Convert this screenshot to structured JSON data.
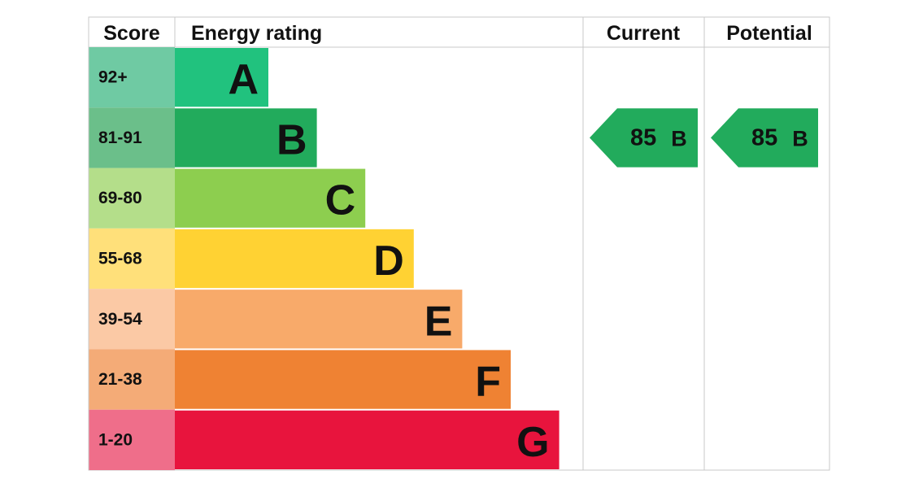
{
  "header": {
    "score": "Score",
    "rating": "Energy rating",
    "current": "Current",
    "potential": "Potential"
  },
  "rows": [
    {
      "score": "92+",
      "band": "A",
      "color": "#21c27e",
      "score_color": "#6fcaa3"
    },
    {
      "score": "81-91",
      "band": "B",
      "color": "#22ab5c",
      "score_color": "#6bbf8a"
    },
    {
      "score": "69-80",
      "band": "C",
      "color": "#8dce4f",
      "score_color": "#b4de8a"
    },
    {
      "score": "55-68",
      "band": "D",
      "color": "#ffd233",
      "score_color": "#ffe07a"
    },
    {
      "score": "39-54",
      "band": "E",
      "color": "#f8aa6a",
      "score_color": "#fbc9a5"
    },
    {
      "score": "21-38",
      "band": "F",
      "color": "#ef8233",
      "score_color": "#f4ab77"
    },
    {
      "score": "1-20",
      "band": "G",
      "color": "#e8143d",
      "score_color": "#ef6e8a"
    }
  ],
  "current": {
    "value": 85,
    "band": "B"
  },
  "potential": {
    "value": 85,
    "band": "B"
  }
}
